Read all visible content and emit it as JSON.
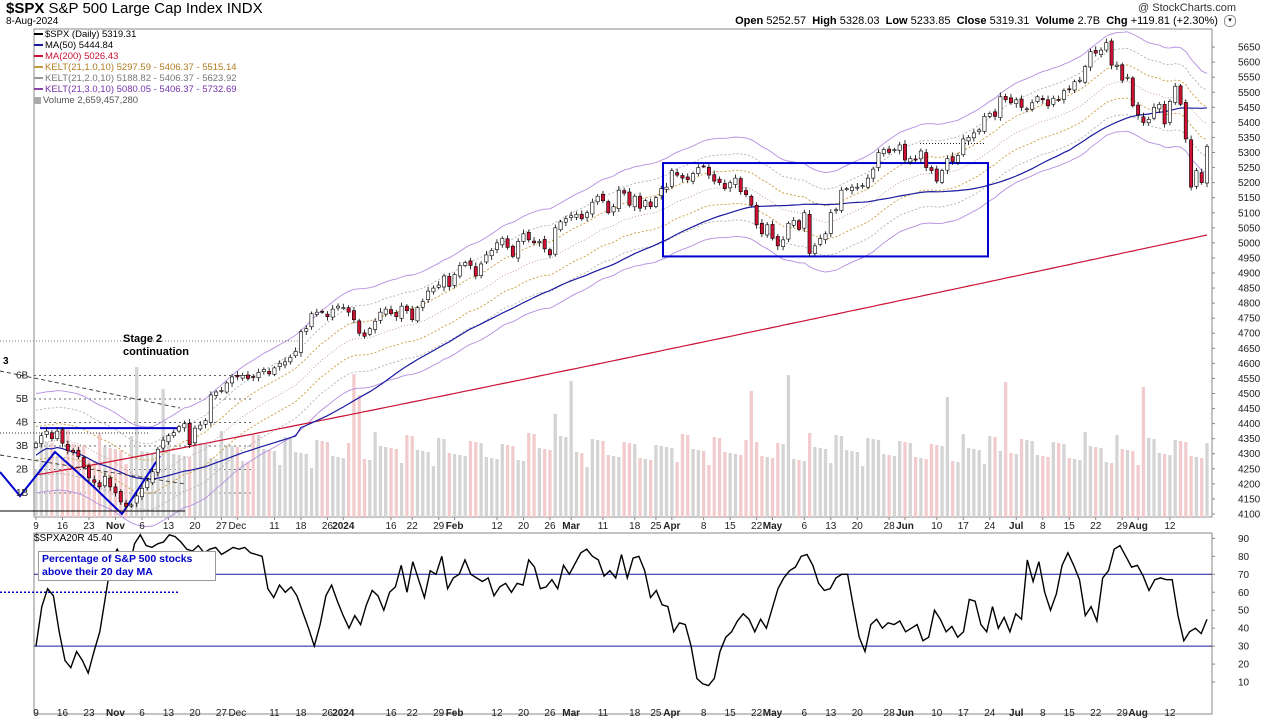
{
  "header": {
    "symbol": "$SPX",
    "name": "S&P 500 Large Cap Index",
    "exchange": "INDX",
    "date": "8-Aug-2024",
    "credit": "@ StockCharts.com",
    "open_label": "Open",
    "open": "5252.57",
    "high_label": "High",
    "high": "5328.03",
    "low_label": "Low",
    "low": "5233.85",
    "close_label": "Close",
    "close": "5319.31",
    "volume_label": "Volume",
    "volume": "2.7B",
    "chg_label": "Chg",
    "chg": "+119.81 (+2.30%)"
  },
  "legend": [
    {
      "text": "$SPX (Daily) 5319.31",
      "color": "#000000"
    },
    {
      "text": "MA(50) 5444.84",
      "color": "#1a1aa0"
    },
    {
      "text": "MA(200) 5026.43",
      "color": "#cc1133"
    },
    {
      "text": "KELT(21,1.0,10) 5297.59 - 5406.37 - 5515.14",
      "color": "#c89a3c"
    },
    {
      "text": "KELT(21,2.0,10) 5188.82 - 5406.37 - 5623.92",
      "color": "#999999"
    },
    {
      "text": "KELT(21,3.0,10) 5080.05 - 5406.37 - 5732.69",
      "color": "#8844aa"
    },
    {
      "text": "Volume 2,659,457,280",
      "color": "#777777"
    }
  ],
  "annotations": {
    "stage": "Stage 2 continuation",
    "wave": "3",
    "breadth_note": "Percentage of S&P 500 stocks above their 20 day MA",
    "indicator_label": "$SPXA20R 45.40"
  },
  "colors": {
    "up_candle": "#ffffff",
    "down_candle": "#cc1133",
    "ma50": "#1a1aa0",
    "ma200": "#cc1133",
    "kelt1": "#c89a3c",
    "kelt2": "#b0b0b0",
    "kelt3": "#b48ee0",
    "volume_up": "#d4d4d4",
    "volume_down": "#f2cccc",
    "box": "#0000cc"
  },
  "chart_data": [
    {
      "type": "candlestick",
      "title": "$SPX S&P 500 Large Cap Index",
      "ylim": [
        4090,
        5710
      ],
      "yticks": [
        4100,
        4150,
        4200,
        4250,
        4300,
        4350,
        4400,
        4450,
        4500,
        4550,
        4600,
        4650,
        4700,
        4750,
        4800,
        4850,
        4900,
        4950,
        5000,
        5050,
        5100,
        5150,
        5200,
        5250,
        5300,
        5350,
        5400,
        5450,
        5500,
        5550,
        5600,
        5650
      ],
      "volume_ticks": [
        "1B",
        "2B",
        "3B",
        "4B",
        "5B",
        "6B"
      ],
      "xticks": [
        "9",
        "16",
        "23",
        "Nov",
        "6",
        "13",
        "20",
        "27",
        "Dec",
        "11",
        "18",
        "26",
        "2024",
        "16",
        "22",
        "29",
        "Feb",
        "12",
        "20",
        "26",
        "Mar",
        "11",
        "18",
        "25",
        "Apr",
        "8",
        "15",
        "22",
        "May",
        "6",
        "13",
        "20",
        "28",
        "Jun",
        "10",
        "17",
        "24",
        "Jul",
        "8",
        "15",
        "22",
        "29",
        "Aug",
        "12"
      ],
      "series": [
        {
          "name": "$SPX (Daily)",
          "close": [
            4335,
            4360,
            4375,
            4350,
            4375,
            4335,
            4310,
            4305,
            4290,
            4255,
            4220,
            4205,
            4190,
            4225,
            4190,
            4170,
            4140,
            4125,
            4130,
            4160,
            4185,
            4210,
            4240,
            4315,
            4345,
            4360,
            4370,
            4390,
            4400,
            4330,
            4385,
            4395,
            4410,
            4495,
            4505,
            4510,
            4535,
            4555,
            4555,
            4560,
            4550,
            4555,
            4570,
            4580,
            4565,
            4585,
            4600,
            4605,
            4620,
            4640,
            4705,
            4715,
            4765,
            4770,
            4770,
            4755,
            4780,
            4790,
            4785,
            4770,
            4745,
            4700,
            4690,
            4715,
            4740,
            4770,
            4780,
            4765,
            4755,
            4790,
            4775,
            4745,
            4785,
            4805,
            4840,
            4850,
            4860,
            4890,
            4855,
            4895,
            4925,
            4935,
            4925,
            4890,
            4930,
            4960,
            4975,
            5000,
            5015,
            4985,
            4955,
            5005,
            5030,
            5010,
            5000,
            5005,
            4980,
            4960,
            5050,
            5070,
            5080,
            5090,
            5095,
            5080,
            5100,
            5135,
            5155,
            5140,
            5100,
            5120,
            5175,
            5165,
            5125,
            5155,
            5115,
            5140,
            5120,
            5150,
            5180,
            5185,
            5240,
            5225,
            5215,
            5210,
            5230,
            5250,
            5255,
            5225,
            5205,
            5200,
            5180,
            5200,
            5215,
            5170,
            5160,
            5125,
            5060,
            5030,
            5060,
            5015,
            4990,
            5010,
            5065,
            5075,
            5045,
            5100,
            4965,
            4990,
            5015,
            5030,
            5100,
            5110,
            5175,
            5180,
            5185,
            5185,
            5190,
            5215,
            5245,
            5300,
            5310,
            5300,
            5310,
            5325,
            5275,
            5280,
            5275,
            5305,
            5250,
            5240,
            5205,
            5240,
            5280,
            5270,
            5290,
            5345,
            5350,
            5365,
            5375,
            5420,
            5430,
            5420,
            5485,
            5475,
            5465,
            5475,
            5450,
            5445,
            5465,
            5485,
            5475,
            5455,
            5480,
            5475,
            5505,
            5510,
            5535,
            5540,
            5585,
            5635,
            5630,
            5640,
            5665,
            5590,
            5590,
            5540,
            5550,
            5455,
            5425,
            5400,
            5410,
            5450,
            5460,
            5395,
            5470,
            5520,
            5460,
            5345,
            5185,
            5240,
            5200,
            5320
          ]
        },
        {
          "name": "MA(50)",
          "close_end": 5444.84
        },
        {
          "name": "MA(200)",
          "close_end": 5026.43
        }
      ],
      "boxes": [
        {
          "from_date": "Mar 21",
          "to_date": "Jun 12",
          "y_range": [
            4955,
            5265
          ]
        }
      ]
    },
    {
      "type": "line",
      "title": "$SPXA20R",
      "ylim": [
        0,
        93
      ],
      "yticks": [
        10,
        20,
        30,
        40,
        50,
        60,
        70,
        80,
        90
      ],
      "reference_lines": [
        30,
        70
      ],
      "series": [
        {
          "name": "$SPXA20R",
          "values": [
            30,
            52,
            62,
            58,
            38,
            22,
            18,
            27,
            22,
            15,
            27,
            38,
            58,
            78,
            84,
            78,
            72,
            87,
            92,
            86,
            85,
            87,
            88,
            92,
            91,
            88,
            84,
            83,
            86,
            82,
            84,
            85,
            81,
            83,
            85,
            84,
            85,
            82,
            81,
            80,
            62,
            57,
            64,
            60,
            63,
            58,
            49,
            40,
            30,
            42,
            58,
            64,
            55,
            47,
            40,
            47,
            42,
            53,
            61,
            58,
            50,
            60,
            63,
            75,
            60,
            77,
            67,
            57,
            72,
            70,
            80,
            62,
            68,
            70,
            78,
            70,
            68,
            66,
            68,
            58,
            63,
            65,
            60,
            65,
            64,
            78,
            74,
            62,
            63,
            67,
            62,
            75,
            70,
            76,
            82,
            84,
            80,
            78,
            69,
            72,
            68,
            81,
            68,
            79,
            80,
            72,
            57,
            61,
            53,
            52,
            38,
            43,
            42,
            30,
            12,
            9,
            8,
            12,
            27,
            35,
            38,
            44,
            48,
            45,
            38,
            45,
            40,
            51,
            62,
            68,
            72,
            74,
            80,
            81,
            75,
            65,
            61,
            62,
            68,
            70,
            70,
            52,
            35,
            27,
            42,
            45,
            40,
            43,
            42,
            44,
            38,
            40,
            42,
            33,
            35,
            50,
            45,
            38,
            41,
            35,
            38,
            56,
            55,
            42,
            38,
            52,
            40,
            46,
            38,
            48,
            45,
            78,
            66,
            77,
            60,
            50,
            59,
            75,
            82,
            75,
            67,
            47,
            52,
            44,
            68,
            72,
            84,
            86,
            80,
            74,
            75,
            69,
            61,
            67,
            68,
            67,
            67,
            47,
            33,
            38,
            40,
            37,
            45
          ]
        }
      ]
    }
  ]
}
